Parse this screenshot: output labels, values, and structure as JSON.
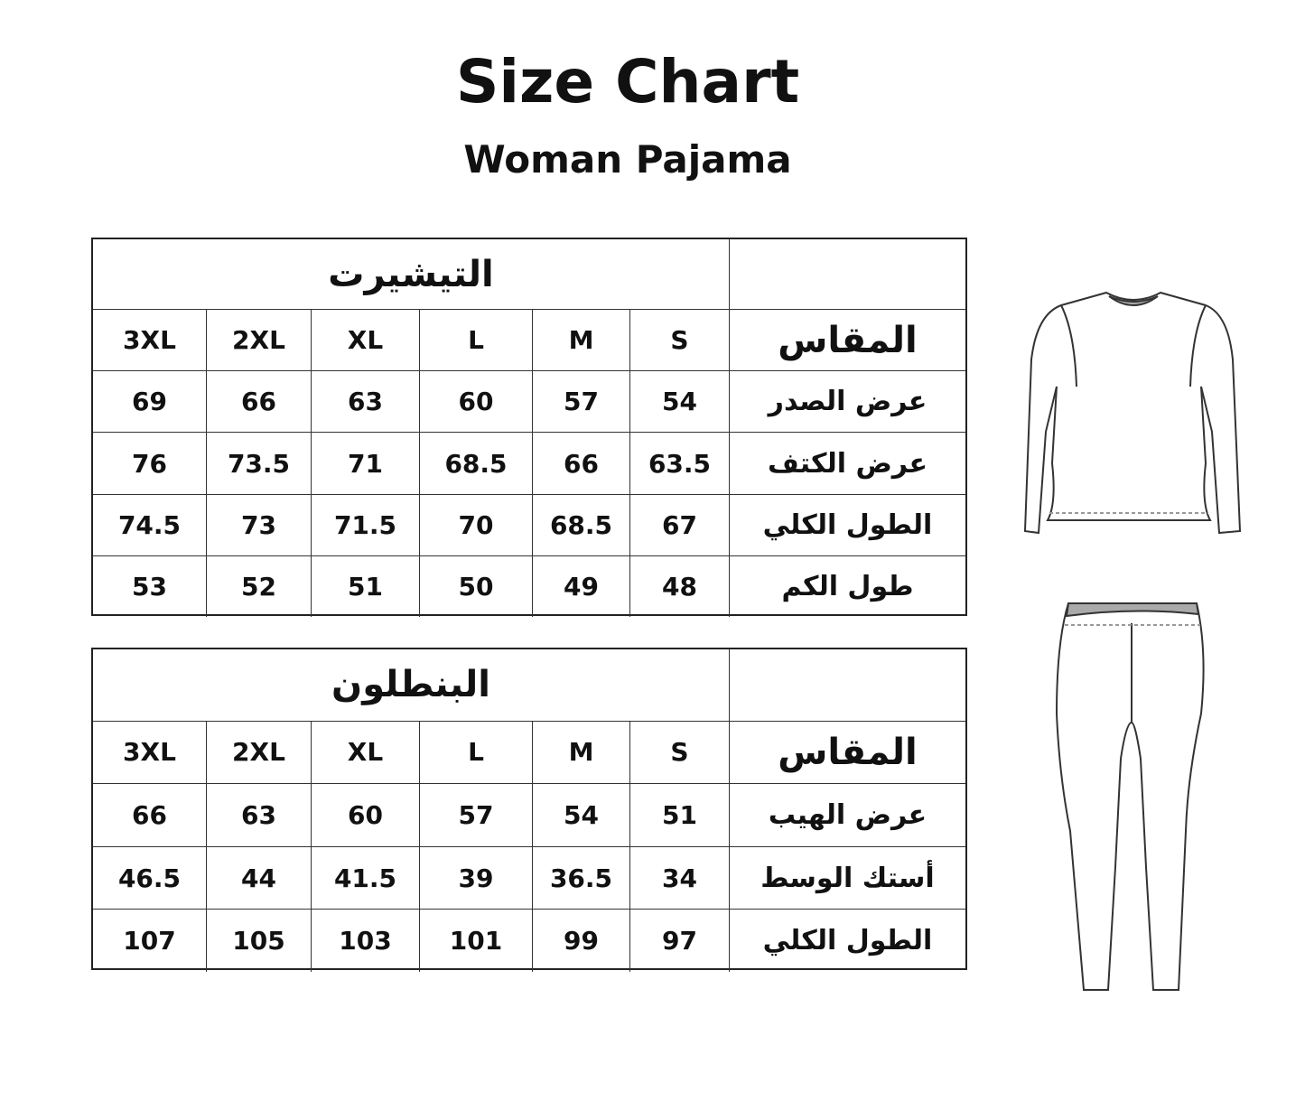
{
  "title": "Size Chart",
  "subtitle": "Woman Pajama",
  "size_label": "المقاس",
  "sizes": [
    "S",
    "M",
    "L",
    "XL",
    "2XL",
    "3XL"
  ],
  "tables": [
    {
      "section": "التيشيرت",
      "rows": [
        {
          "label": "عرض الصدر",
          "values": [
            "54",
            "57",
            "60",
            "63",
            "66",
            "69"
          ]
        },
        {
          "label": "عرض الكتف",
          "values": [
            "63.5",
            "66",
            "68.5",
            "71",
            "73.5",
            "76"
          ]
        },
        {
          "label": "الطول الكلي",
          "values": [
            "67",
            "68.5",
            "70",
            "71.5",
            "73",
            "74.5"
          ]
        },
        {
          "label": "طول الكم",
          "values": [
            "48",
            "49",
            "50",
            "51",
            "52",
            "53"
          ]
        }
      ]
    },
    {
      "section": "البنطلون",
      "rows": [
        {
          "label": "عرض الهيب",
          "values": [
            "51",
            "54",
            "57",
            "60",
            "63",
            "66"
          ]
        },
        {
          "label": "أستك الوسط",
          "values": [
            "34",
            "36.5",
            "39",
            "41.5",
            "44",
            "46.5"
          ]
        },
        {
          "label": "الطول الكلي",
          "values": [
            "97",
            "99",
            "101",
            "103",
            "105",
            "107"
          ]
        }
      ]
    }
  ],
  "illustrations": [
    "long-sleeve-shirt",
    "leggings"
  ]
}
